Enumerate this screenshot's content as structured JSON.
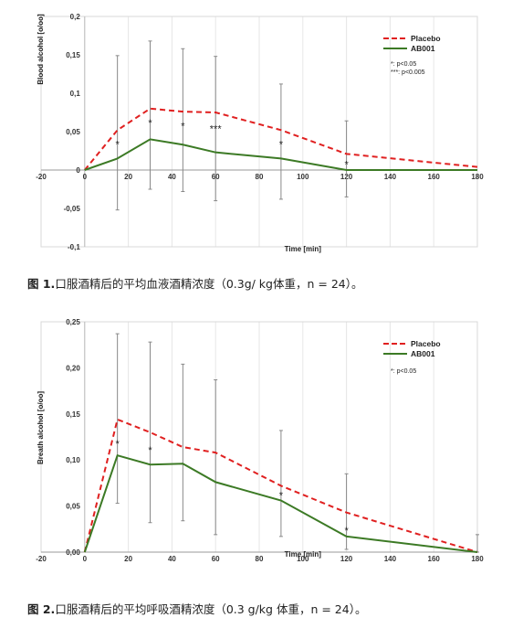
{
  "chart_data": [
    {
      "type": "line",
      "x": [
        0,
        15,
        30,
        45,
        60,
        90,
        120,
        180
      ],
      "series": [
        {
          "name": "Placebo",
          "color": "#e02020",
          "dash": true,
          "values": [
            0,
            0.052,
            0.08,
            0.076,
            0.075,
            0.052,
            0.021,
            0.004
          ]
        },
        {
          "name": "AB001",
          "color": "#3c7a25",
          "dash": false,
          "values": [
            0,
            0.015,
            0.04,
            0.033,
            0.023,
            0.015,
            0.0,
            0.0
          ]
        }
      ],
      "error_bars": [
        {
          "x": 15,
          "low": -0.052,
          "high": 0.149
        },
        {
          "x": 30,
          "low": -0.025,
          "high": 0.168
        },
        {
          "x": 45,
          "low": -0.028,
          "high": 0.158
        },
        {
          "x": 60,
          "low": -0.04,
          "high": 0.148
        },
        {
          "x": 90,
          "low": -0.038,
          "high": 0.112
        },
        {
          "x": 120,
          "low": -0.035,
          "high": 0.064
        }
      ],
      "stars": [
        {
          "x": 15,
          "y": 0.034,
          "text": "*"
        },
        {
          "x": 30,
          "y": 0.062,
          "text": "*"
        },
        {
          "x": 45,
          "y": 0.058,
          "text": "*"
        },
        {
          "x": 60,
          "y": 0.054,
          "text": "***"
        },
        {
          "x": 90,
          "y": 0.034,
          "text": "*"
        },
        {
          "x": 120,
          "y": 0.008,
          "text": "*"
        }
      ],
      "xlim": [
        -20,
        180
      ],
      "ylim": [
        -0.1,
        0.2
      ],
      "xticks": [
        -20,
        0,
        20,
        40,
        60,
        80,
        100,
        120,
        140,
        160,
        180
      ],
      "yticks": [
        -0.1,
        -0.05,
        0,
        0.05,
        0.1,
        0.15,
        0.2
      ],
      "ytick_labels": [
        "-0,1",
        "-0,05",
        "0",
        "0,05",
        "0,1",
        "0,15",
        "0,2"
      ],
      "xlabel": "Time [min]",
      "ylabel": "Blood alcohol [o/oo]",
      "legend": "top-right",
      "notes": [
        "*:    p<0.05",
        "***: p<0.005"
      ],
      "grid": "vertical"
    },
    {
      "type": "line",
      "x": [
        0,
        15,
        30,
        45,
        60,
        90,
        120,
        180
      ],
      "series": [
        {
          "name": "Placebo",
          "color": "#e02020",
          "dash": true,
          "values": [
            0,
            0.144,
            0.13,
            0.114,
            0.108,
            0.072,
            0.043,
            0.0
          ]
        },
        {
          "name": "AB001",
          "color": "#3c7a25",
          "dash": false,
          "values": [
            0,
            0.105,
            0.095,
            0.096,
            0.076,
            0.056,
            0.017,
            0.0
          ]
        }
      ],
      "error_bars": [
        {
          "x": 15,
          "low": 0.053,
          "high": 0.237
        },
        {
          "x": 30,
          "low": 0.032,
          "high": 0.228
        },
        {
          "x": 45,
          "low": 0.034,
          "high": 0.204
        },
        {
          "x": 60,
          "low": 0.019,
          "high": 0.187
        },
        {
          "x": 90,
          "low": 0.017,
          "high": 0.132
        },
        {
          "x": 120,
          "low": 0.003,
          "high": 0.085
        },
        {
          "x": 180,
          "low": 0.0,
          "high": 0.019
        }
      ],
      "stars": [
        {
          "x": 15,
          "y": 0.118,
          "text": "*"
        },
        {
          "x": 30,
          "y": 0.111,
          "text": "*"
        },
        {
          "x": 90,
          "y": 0.062,
          "text": "*"
        },
        {
          "x": 120,
          "y": 0.024,
          "text": "*"
        }
      ],
      "xlim": [
        -20,
        180
      ],
      "ylim": [
        0,
        0.25
      ],
      "xticks": [
        -20,
        0,
        20,
        40,
        60,
        80,
        100,
        120,
        140,
        160,
        180
      ],
      "yticks": [
        0,
        0.05,
        0.1,
        0.15,
        0.2,
        0.25
      ],
      "ytick_labels": [
        "0,00",
        "0,05",
        "0,10",
        "0,15",
        "0,20",
        "0,25"
      ],
      "xlabel": "Time [min]",
      "ylabel": "Breath alcohol [o/oo]",
      "legend": "top-right",
      "notes": [
        "*:    p<0.05"
      ],
      "grid": "vertical"
    }
  ],
  "captions": [
    {
      "label": "图 1.",
      "text": "口服酒精后的平均血液酒精浓度（0.3g/ kg体重，n = 24）。"
    },
    {
      "label": "图 2.",
      "text": "口服酒精后的平均呼吸酒精浓度（0.3 g/kg 体重，n = 24）。"
    }
  ]
}
